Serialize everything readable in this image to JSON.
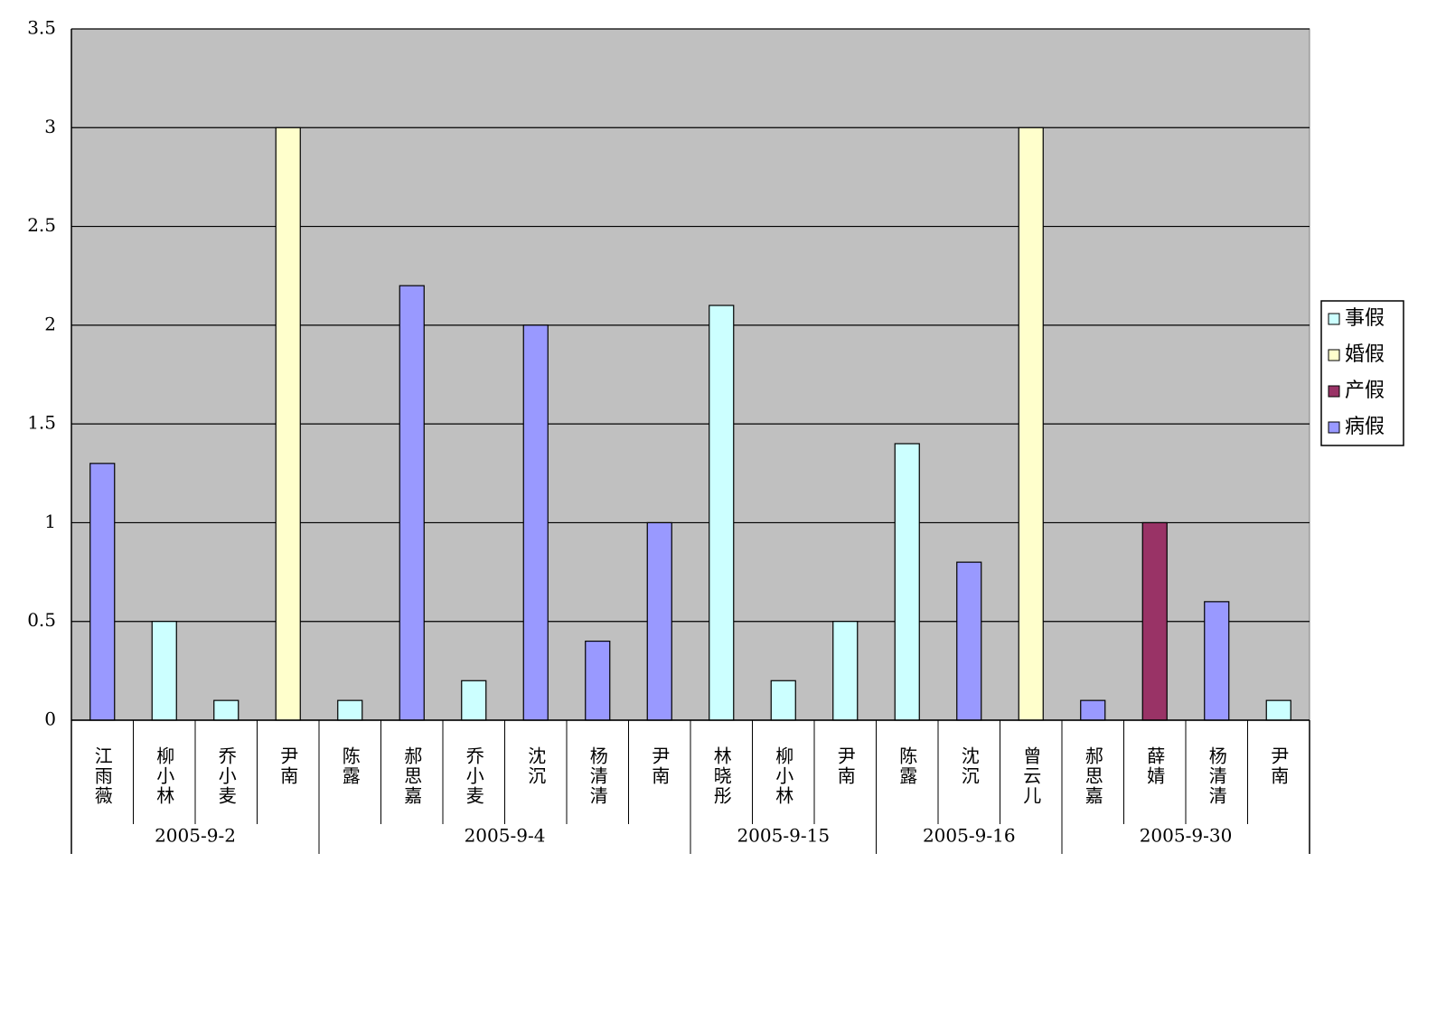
{
  "chart_data": {
    "type": "bar",
    "groups": [
      {
        "label": "2005-9-2",
        "categories": [
          "江雨薇",
          "柳小林",
          "乔小麦",
          "尹南"
        ]
      },
      {
        "label": "2005-9-4",
        "categories": [
          "陈露",
          "郝思嘉",
          "乔小麦",
          "沈沉",
          "杨清清",
          "尹南"
        ]
      },
      {
        "label": "2005-9-15",
        "categories": [
          "林晓彤",
          "柳小林",
          "尹南"
        ]
      },
      {
        "label": "2005-9-16",
        "categories": [
          "陈露",
          "沈沉",
          "曾云儿"
        ]
      },
      {
        "label": "2005-9-30",
        "categories": [
          "郝思嘉",
          "薛婧",
          "杨清清",
          "尹南"
        ]
      }
    ],
    "series": [
      {
        "name": "事假",
        "color": "#ccffff",
        "values": [
          null,
          0.5,
          0.1,
          null,
          0.1,
          null,
          0.2,
          null,
          null,
          null,
          2.1,
          0.2,
          0.5,
          1.4,
          null,
          null,
          null,
          null,
          null,
          0.1
        ]
      },
      {
        "name": "婚假",
        "color": "#ffffcc",
        "values": [
          null,
          null,
          null,
          3,
          null,
          null,
          null,
          null,
          null,
          null,
          null,
          null,
          null,
          null,
          null,
          3,
          null,
          null,
          null,
          null
        ]
      },
      {
        "name": "产假",
        "color": "#993366",
        "values": [
          null,
          null,
          null,
          null,
          null,
          null,
          null,
          null,
          null,
          null,
          null,
          null,
          null,
          null,
          null,
          null,
          null,
          1,
          null,
          null
        ]
      },
      {
        "name": "病假",
        "color": "#9999ff",
        "values": [
          1.3,
          null,
          null,
          null,
          null,
          2.2,
          null,
          2,
          0.4,
          1,
          null,
          null,
          null,
          null,
          0.8,
          null,
          0.1,
          null,
          0.6,
          null
        ]
      }
    ],
    "ylim": [
      0,
      3.5
    ],
    "yticks": [
      0,
      0.5,
      1,
      1.5,
      2,
      2.5,
      3,
      3.5
    ],
    "grid": true,
    "legend": "right"
  }
}
